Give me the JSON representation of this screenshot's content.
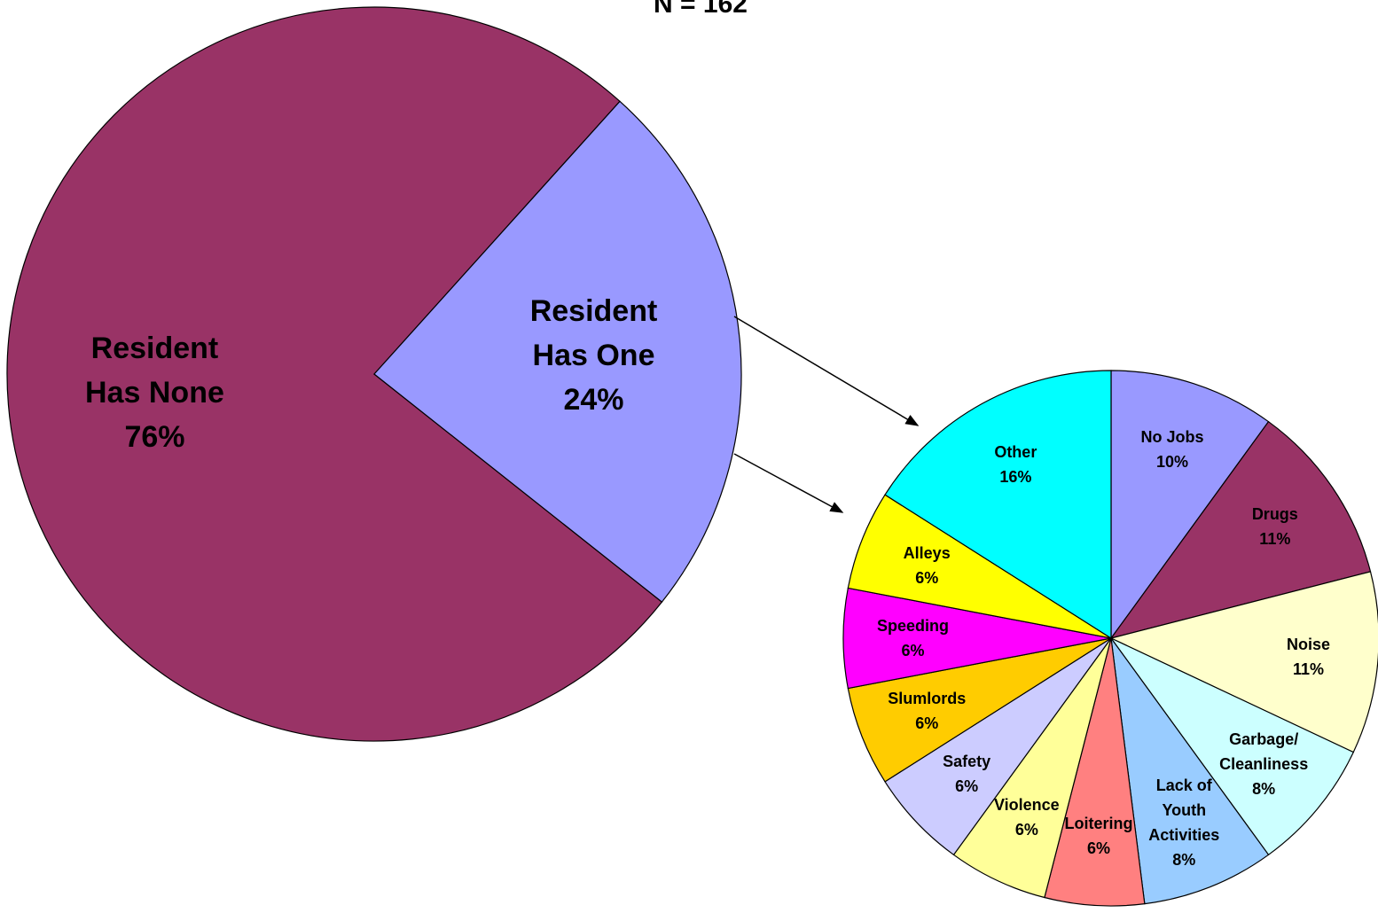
{
  "chart_data": [
    {
      "type": "pie",
      "title": "N = 162",
      "categories": [
        "Resident Has None",
        "Resident Has One"
      ],
      "values": [
        76,
        24
      ],
      "value_labels": [
        "76%",
        "24%"
      ],
      "colors": [
        "#993366",
        "#9999ff"
      ]
    },
    {
      "type": "pie",
      "categories": [
        "No Jobs",
        "Drugs",
        "Noise",
        "Garbage/ Cleanliness",
        "Lack of Youth Activities",
        "Loitering",
        "Violence",
        "Safety",
        "Slumlords",
        "Speeding",
        "Alleys",
        "Other"
      ],
      "values": [
        10,
        11,
        11,
        8,
        8,
        6,
        6,
        6,
        6,
        6,
        6,
        16
      ],
      "value_labels": [
        "10%",
        "11%",
        "11%",
        "8%",
        "8%",
        "6%",
        "6%",
        "6%",
        "6%",
        "6%",
        "6%",
        "16%"
      ],
      "colors": [
        "#9999ff",
        "#993366",
        "#ffffcc",
        "#ccffff",
        "#99ccff",
        "#ff8080",
        "#ffff99",
        "#ccccff",
        "#ffcc00",
        "#ff00ff",
        "#ffff00",
        "#00ffff"
      ]
    }
  ]
}
